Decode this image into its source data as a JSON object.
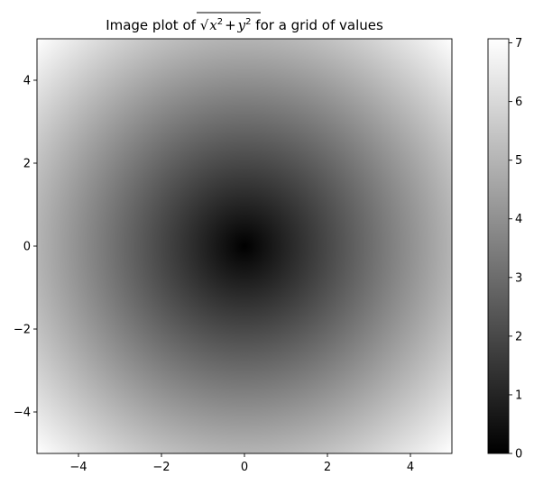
{
  "chart_data": {
    "type": "heatmap",
    "title_prefix": "Image plot of ",
    "title_math": {
      "x": "x",
      "y": "y",
      "exp": "2",
      "plus": "+"
    },
    "title_suffix": " for a grid of values",
    "function": "sqrt(x^2 + y^2)",
    "colormap": "gray",
    "xlim": [
      -5,
      5
    ],
    "ylim": [
      -5,
      5
    ],
    "x_ticks": [
      -4,
      -2,
      0,
      2,
      4
    ],
    "x_tick_labels": [
      "−4",
      "−2",
      "0",
      "2",
      "4"
    ],
    "y_ticks": [
      -4,
      -2,
      0,
      2,
      4
    ],
    "y_tick_labels": [
      "−4",
      "−2",
      "0",
      "2",
      "4"
    ],
    "value_range": [
      0,
      7.07
    ],
    "colorbar": {
      "ticks": [
        0,
        1,
        2,
        3,
        4,
        5,
        6,
        7
      ],
      "tick_labels": [
        "0",
        "1",
        "2",
        "3",
        "4",
        "5",
        "6",
        "7"
      ]
    },
    "grid": false,
    "legend": "none"
  }
}
